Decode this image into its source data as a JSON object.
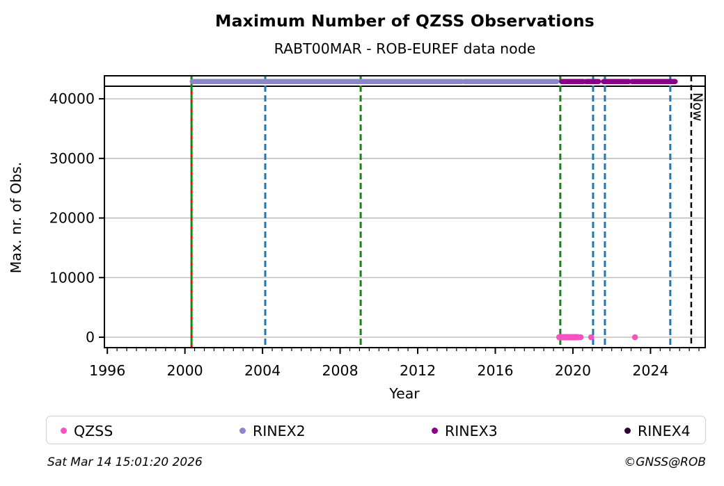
{
  "chart_data": {
    "type": "scatter",
    "title": "Maximum Number of QZSS Observations",
    "subtitle": "RABT00MAR - ROB-EUREF data node",
    "xlabel": "Year",
    "ylabel": "Max. nr. of Obs.",
    "xlim": [
      1995.85,
      2026.82
    ],
    "ylim": [
      -1750,
      43860
    ],
    "xticks": [
      1996,
      2000,
      2004,
      2008,
      2012,
      2016,
      2020,
      2024
    ],
    "yticks": [
      0,
      10000,
      20000,
      30000,
      40000
    ],
    "x_minor_tick_step_years": 0.5,
    "grid": "horizontal",
    "grid_color": "#b4b4b4",
    "threshold_line_value": 42110,
    "legend_position": "bottom",
    "series": [
      {
        "name": "QZSS",
        "color": "#f652c1",
        "value": 0,
        "segments": [
          [
            2019.3,
            2020.26
          ]
        ],
        "points": [
          2020.4,
          2020.94,
          2023.2
        ]
      },
      {
        "name": "RINEX2",
        "color": "#8a88c8",
        "value": 42900,
        "segments": [
          [
            2000.38,
            2014.25
          ],
          [
            2014.4,
            2019.17
          ]
        ],
        "points": []
      },
      {
        "name": "RINEX3",
        "color": "#870085",
        "value": 42900,
        "segments": [
          [
            2019.42,
            2020.54
          ],
          [
            2020.68,
            2021.32
          ],
          [
            2021.58,
            2022.87
          ],
          [
            2023.05,
            2025.27
          ]
        ],
        "points": []
      },
      {
        "name": "RINEX4",
        "color": "#2d062e",
        "value": null,
        "segments": [],
        "points": []
      }
    ],
    "event_lines": [
      {
        "year": 2000.34,
        "style": "green-red"
      },
      {
        "year": 2004.14,
        "style": "blue"
      },
      {
        "year": 2009.06,
        "style": "green"
      },
      {
        "year": 2019.35,
        "style": "green"
      },
      {
        "year": 2021.04,
        "style": "blue"
      },
      {
        "year": 2021.65,
        "style": "blue"
      },
      {
        "year": 2025.02,
        "style": "blue"
      },
      {
        "year": 2026.1,
        "style": "black",
        "label": "Now"
      }
    ],
    "line_colors": {
      "green": "#128812",
      "red": "#dd1111",
      "blue": "#1f77b4",
      "black": "#000000"
    },
    "now_label": "Now"
  },
  "legend": {
    "items": [
      {
        "label": "QZSS",
        "color": "#f652c1"
      },
      {
        "label": "RINEX2",
        "color": "#8a88c8"
      },
      {
        "label": "RINEX3",
        "color": "#870085"
      },
      {
        "label": "RINEX4",
        "color": "#2d062e"
      }
    ]
  },
  "footer": {
    "timestamp": "Sat Mar 14 15:01:20 2026",
    "copyright": "©GNSS@ROB"
  }
}
